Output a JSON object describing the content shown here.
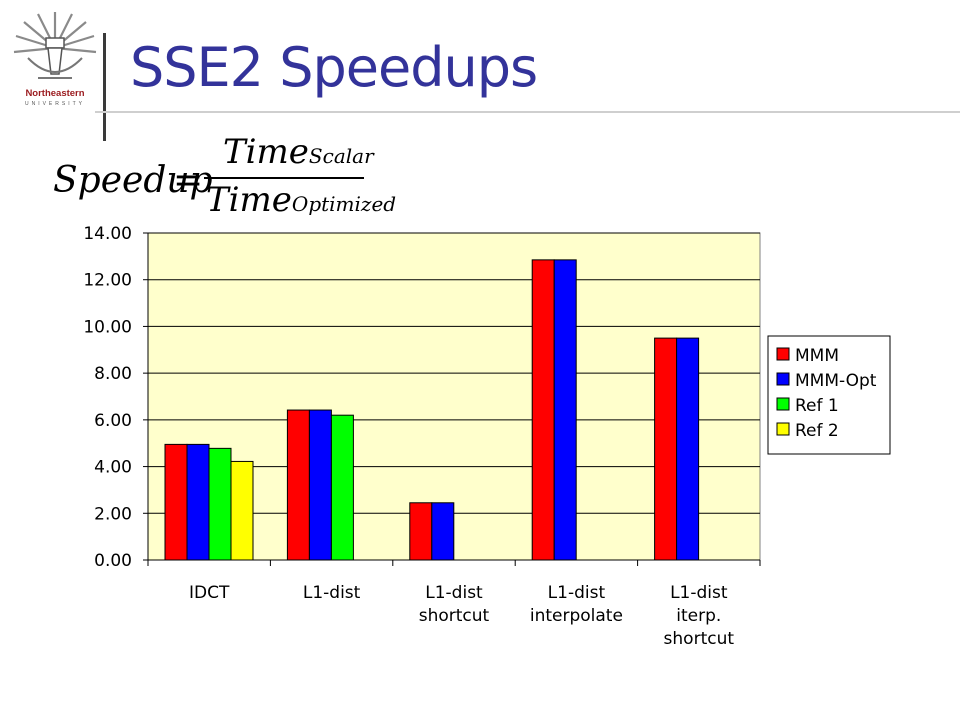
{
  "slide": {
    "title": "SSE2 Speedups",
    "logo": {
      "name": "Northeastern",
      "subtitle": "UNIVERSITY"
    },
    "formula": {
      "lhs": "Speedup",
      "eq": "=",
      "num": "Time",
      "num_sub": "Scalar",
      "den": "Time",
      "den_sub": "Optimized"
    }
  },
  "chart_data": {
    "type": "bar",
    "categories": [
      [
        "IDCT"
      ],
      [
        "L1-dist"
      ],
      [
        "L1-dist",
        "shortcut"
      ],
      [
        "L1-dist",
        "interpolate"
      ],
      [
        "L1-dist",
        "iterp.",
        "shortcut"
      ]
    ],
    "series": [
      {
        "name": "MMM",
        "color": "#ff0000",
        "values": [
          4.95,
          6.42,
          2.45,
          12.85,
          9.5
        ]
      },
      {
        "name": "MMM-Opt",
        "color": "#0000ff",
        "values": [
          4.95,
          6.42,
          2.45,
          12.85,
          9.5
        ]
      },
      {
        "name": "Ref 1",
        "color": "#00ff00",
        "values": [
          4.78,
          6.2,
          null,
          null,
          null
        ]
      },
      {
        "name": "Ref 2",
        "color": "#ffff00",
        "values": [
          4.22,
          null,
          null,
          null,
          null
        ]
      }
    ],
    "ylim": [
      0,
      14
    ],
    "yticks": [
      "0.00",
      "2.00",
      "4.00",
      "6.00",
      "8.00",
      "10.00",
      "12.00",
      "14.00"
    ],
    "plot_background": "#ffffcc",
    "grid": true,
    "legend": "right"
  }
}
